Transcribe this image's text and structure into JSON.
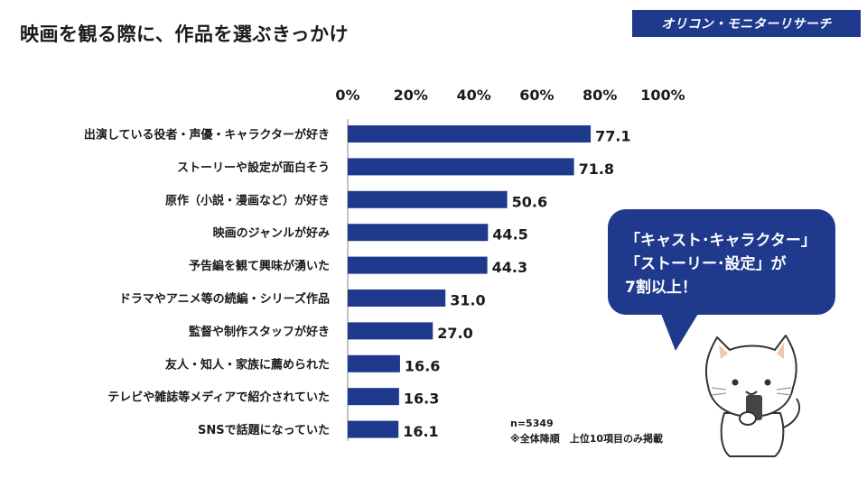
{
  "header": {
    "title": "映画を観る際に、作品を選ぶきっかけ",
    "brand": "オリコン・モニターリサーチ"
  },
  "callout": {
    "line1": "「キャスト･キャラクター」",
    "line2": "「ストーリー･設定」が",
    "line3": "7割以上！"
  },
  "notes": {
    "sample": "n=5349",
    "remark": "※全体降順　上位10項目のみ掲載"
  },
  "chart_data": {
    "type": "bar",
    "orientation": "horizontal",
    "categories": [
      "出演している役者・声優・キャラクターが好き",
      "ストーリーや設定が面白そう",
      "原作（小説・漫画など）が好き",
      "映画のジャンルが好み",
      "予告編を観て興味が湧いた",
      "ドラマやアニメ等の続編・シリーズ作品",
      "監督や制作スタッフが好き",
      "友人・知人・家族に薦められた",
      "テレビや雑誌等メディアで紹介されていた",
      "SNSで話題になっていた"
    ],
    "values": [
      77.1,
      71.8,
      50.6,
      44.5,
      44.3,
      31.0,
      27.0,
      16.6,
      16.3,
      16.1
    ],
    "value_labels": [
      "77.1",
      "71.8",
      "50.6",
      "44.5",
      "44.3",
      "31.0",
      "27.0",
      "16.6",
      "16.3",
      "16.1"
    ],
    "ticks": [
      "0%",
      "20%",
      "40%",
      "60%",
      "80%",
      "100%"
    ],
    "tick_values": [
      0,
      20,
      40,
      60,
      80,
      100
    ],
    "xlim": [
      0,
      100
    ],
    "axis_position": "top",
    "bar_color": "#1f3a8c",
    "grid": false,
    "legend": "none"
  }
}
